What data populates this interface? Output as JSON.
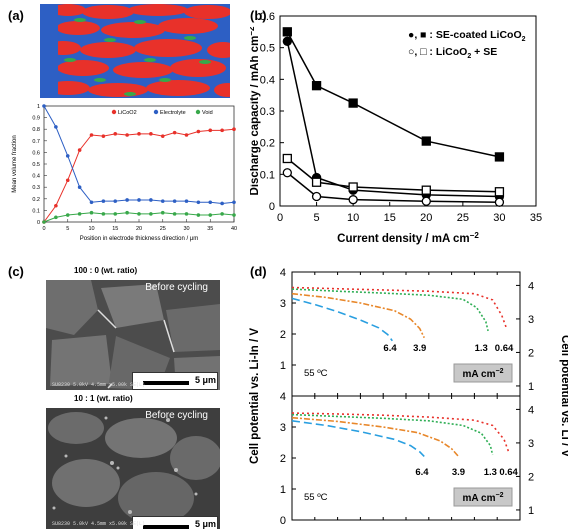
{
  "panels": {
    "a": {
      "label": "(a)",
      "sim_colors": {
        "licoo2": "#e8312a",
        "electrolyte": "#2d5fc4",
        "void": "#38a84a"
      },
      "chart_data": {
        "type": "line",
        "xlabel": "Position in electrode thickness direction / μm",
        "ylabel": "Mean volume fraction",
        "xlim": [
          0,
          40
        ],
        "ylim": [
          0,
          1
        ],
        "xticks": [
          0,
          5,
          10,
          15,
          20,
          25,
          30,
          35,
          40
        ],
        "yticks": [
          0,
          0.1,
          0.2,
          0.3,
          0.4,
          0.5,
          0.6,
          0.7,
          0.8,
          0.9,
          1
        ],
        "legend": "top",
        "series": [
          {
            "name": "LiCoO2",
            "color": "#e8312a",
            "x": [
              0,
              2.5,
              5,
              7.5,
              10,
              12.5,
              15,
              17.5,
              20,
              22.5,
              25,
              27.5,
              30,
              32.5,
              35,
              37.5,
              40
            ],
            "y": [
              0.0,
              0.14,
              0.36,
              0.62,
              0.75,
              0.74,
              0.76,
              0.75,
              0.76,
              0.76,
              0.74,
              0.77,
              0.75,
              0.78,
              0.79,
              0.79,
              0.8
            ]
          },
          {
            "name": "Electrolyte",
            "color": "#2d5fc4",
            "x": [
              0,
              2.5,
              5,
              7.5,
              10,
              12.5,
              15,
              17.5,
              20,
              22.5,
              25,
              27.5,
              30,
              32.5,
              35,
              37.5,
              40
            ],
            "y": [
              1.0,
              0.82,
              0.57,
              0.3,
              0.17,
              0.18,
              0.18,
              0.19,
              0.19,
              0.19,
              0.18,
              0.18,
              0.18,
              0.17,
              0.17,
              0.16,
              0.17
            ]
          },
          {
            "name": "Void",
            "color": "#38a84a",
            "x": [
              0,
              2.5,
              5,
              7.5,
              10,
              12.5,
              15,
              17.5,
              20,
              22.5,
              25,
              27.5,
              30,
              32.5,
              35,
              37.5,
              40
            ],
            "y": [
              0.0,
              0.04,
              0.06,
              0.07,
              0.08,
              0.07,
              0.07,
              0.08,
              0.07,
              0.07,
              0.08,
              0.07,
              0.07,
              0.06,
              0.06,
              0.07,
              0.06
            ]
          }
        ]
      }
    },
    "b": {
      "label": "(b)",
      "chart_data": {
        "type": "line",
        "xlabel": "Current density / mA cm",
        "xlabel_sup": "−2",
        "ylabel": "Discharge capacity / mAh cm",
        "ylabel_sup": "−2",
        "xlim": [
          0,
          35
        ],
        "ylim": [
          0,
          0.6
        ],
        "xticks": [
          0,
          5,
          10,
          15,
          20,
          25,
          30,
          35
        ],
        "yticks": [
          0,
          0.1,
          0.2,
          0.3,
          0.4,
          0.5,
          0.6
        ],
        "legend": "top-right",
        "legend_entries": [
          {
            "symbols": "●, ■",
            "text": ": SE-coated LiCoO",
            "sub": "2"
          },
          {
            "symbols": "○, □",
            "text": ": LiCoO",
            "sub": "2",
            "tail": " + SE"
          }
        ],
        "series": [
          {
            "marker": "square",
            "fill": "#000",
            "x": [
              1,
              5,
              10,
              20,
              30
            ],
            "y": [
              0.55,
              0.38,
              0.325,
              0.205,
              0.155
            ]
          },
          {
            "marker": "circle",
            "fill": "#000",
            "x": [
              1,
              5,
              10,
              20,
              30
            ],
            "y": [
              0.52,
              0.09,
              0.05,
              0.035,
              0.03
            ]
          },
          {
            "marker": "square",
            "fill": "#fff",
            "x": [
              1,
              5,
              10,
              20,
              30
            ],
            "y": [
              0.15,
              0.075,
              0.06,
              0.05,
              0.045
            ]
          },
          {
            "marker": "circle",
            "fill": "#fff",
            "x": [
              1,
              5,
              10,
              20,
              30
            ],
            "y": [
              0.105,
              0.03,
              0.02,
              0.015,
              0.012
            ]
          }
        ]
      }
    },
    "c": {
      "label": "(c)",
      "images": [
        {
          "title": "100 : 0 (wt. ratio)",
          "tag": "Before cycling",
          "scale": "5 μm",
          "footer": "SU8230 5.0kV 4.5mm x5.00k SE(L)"
        },
        {
          "title": "10 : 1 (wt. ratio)",
          "tag": "Before cycling",
          "scale": "5 μm",
          "footer": "SU8230 5.0kV 4.5mm x5.00k SE(L)"
        }
      ]
    },
    "d": {
      "label": "(d)",
      "chart_data": {
        "type": "line",
        "ylabel_left": "Cell potential vs. Li-In / V",
        "ylabel_right": "Cell potential vs. Li / V",
        "left_yticks": [
          0,
          1,
          2,
          3,
          4
        ],
        "right_yticks": [
          1,
          2,
          3,
          4
        ],
        "ylim_left": [
          0,
          4
        ],
        "xlim": [
          0,
          1
        ],
        "unit_box": "mA cm",
        "unit_box_sup": "−2",
        "temperature": "55 ºC",
        "subplots": [
          {
            "labels": [
              {
                "text": "6.4",
                "x": 0.43,
                "y": 1.45
              },
              {
                "text": "3.9",
                "x": 0.56,
                "y": 1.45
              },
              {
                "text": "1.3",
                "x": 0.83,
                "y": 1.45
              },
              {
                "text": "0.64",
                "x": 0.93,
                "y": 1.45
              }
            ],
            "series": [
              {
                "current": "6.4",
                "color": "#2a9fe0",
                "dash": "8,4",
                "x": [
                  0,
                  0.1,
                  0.2,
                  0.3,
                  0.38,
                  0.42,
                  0.44
                ],
                "y": [
                  3.15,
                  2.95,
                  2.72,
                  2.45,
                  2.2,
                  1.98,
                  1.78
                ]
              },
              {
                "current": "3.9",
                "color": "#e8872a",
                "dash": "6,2,2,2",
                "x": [
                  0,
                  0.15,
                  0.3,
                  0.45,
                  0.52,
                  0.56,
                  0.58
                ],
                "y": [
                  3.3,
                  3.18,
                  3.0,
                  2.75,
                  2.48,
                  2.18,
                  1.88
                ]
              },
              {
                "current": "1.3",
                "color": "#2fae55",
                "dash": "2,2",
                "x": [
                  0,
                  0.2,
                  0.4,
                  0.6,
                  0.75,
                  0.81,
                  0.85,
                  0.86
                ],
                "y": [
                  3.45,
                  3.38,
                  3.32,
                  3.25,
                  3.12,
                  2.85,
                  2.4,
                  2.1
                ]
              },
              {
                "current": "0.64",
                "color": "#e8312a",
                "dash": "2,3",
                "x": [
                  0,
                  0.2,
                  0.4,
                  0.6,
                  0.8,
                  0.88,
                  0.92,
                  0.94
                ],
                "y": [
                  3.5,
                  3.46,
                  3.42,
                  3.38,
                  3.3,
                  3.1,
                  2.6,
                  2.2
                ]
              }
            ]
          },
          {
            "labels": [
              {
                "text": "6.4",
                "x": 0.57,
                "y": 1.45
              },
              {
                "text": "3.9",
                "x": 0.73,
                "y": 1.45
              },
              {
                "text": "1.3",
                "x": 0.87,
                "y": 1.45
              },
              {
                "text": "0.64",
                "x": 0.95,
                "y": 1.45
              }
            ],
            "series": [
              {
                "current": "6.4",
                "color": "#2a9fe0",
                "dash": "8,4",
                "x": [
                  0,
                  0.15,
                  0.3,
                  0.45,
                  0.52,
                  0.56,
                  0.58
                ],
                "y": [
                  3.2,
                  3.05,
                  2.85,
                  2.6,
                  2.4,
                  2.2,
                  2.05
                ]
              },
              {
                "current": "3.9",
                "color": "#e8872a",
                "dash": "6,2,2,2",
                "x": [
                  0,
                  0.2,
                  0.4,
                  0.55,
                  0.65,
                  0.7,
                  0.73
                ],
                "y": [
                  3.3,
                  3.18,
                  3.0,
                  2.82,
                  2.55,
                  2.3,
                  2.05
                ]
              },
              {
                "current": "1.3",
                "color": "#2fae55",
                "dash": "2,2",
                "x": [
                  0,
                  0.2,
                  0.4,
                  0.6,
                  0.75,
                  0.83,
                  0.87,
                  0.88
                ],
                "y": [
                  3.4,
                  3.34,
                  3.28,
                  3.2,
                  3.05,
                  2.8,
                  2.4,
                  2.1
                ]
              },
              {
                "current": "0.64",
                "color": "#e8312a",
                "dash": "2,3",
                "x": [
                  0,
                  0.2,
                  0.4,
                  0.6,
                  0.8,
                  0.88,
                  0.93,
                  0.95
                ],
                "y": [
                  3.45,
                  3.42,
                  3.38,
                  3.32,
                  3.22,
                  3.05,
                  2.6,
                  2.2
                ]
              }
            ]
          }
        ]
      }
    }
  }
}
